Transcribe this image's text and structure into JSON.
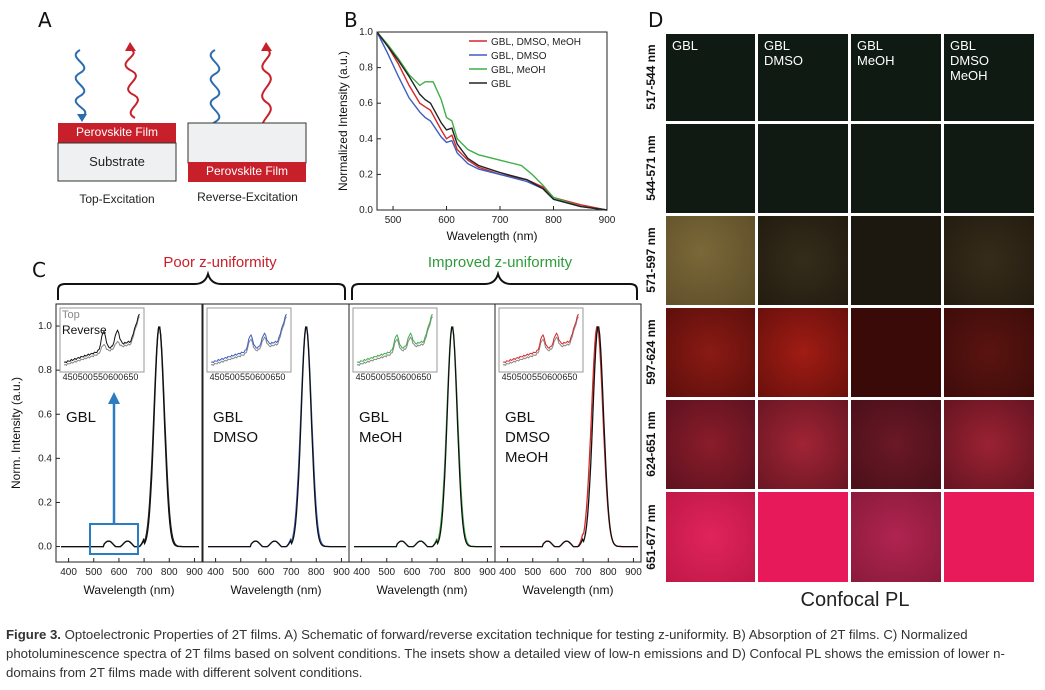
{
  "panels": {
    "a_letter": "A",
    "b_letter": "B",
    "c_letter": "C",
    "d_letter": "D"
  },
  "panel_a": {
    "film": "Perovskite Film",
    "substrate": "Substrate",
    "top_label": "Top-Excitation",
    "reverse_label": "Reverse-Excitation",
    "colors": {
      "film": "#c8202a",
      "wave_in": "#2b6cb0",
      "wave_out": "#c8202a"
    }
  },
  "panel_c_headers": {
    "poor": "Poor z-uniformity",
    "improved": "Improved z-uniformity",
    "poor_color": "#c8202a",
    "improved_color": "#2e9b3b"
  },
  "panel_c_subplots": [
    {
      "label_lines": [
        "GBL"
      ],
      "inset_legend": [
        "Top",
        "Reverse"
      ]
    },
    {
      "label_lines": [
        "GBL",
        "DMSO"
      ]
    },
    {
      "label_lines": [
        "GBL",
        "MeOH"
      ]
    },
    {
      "label_lines": [
        "GBL",
        "DMSO",
        "MeOH"
      ]
    }
  ],
  "panel_c_axes": {
    "ylabel": "Norm. Intensity (a.u.)",
    "xlabel": "Wavelength (nm)",
    "inset_xlabel": "Wavelength (nm)"
  },
  "panel_d": {
    "col_labels": [
      "GBL",
      "GBL\nDMSO",
      "GBL\nMeOH",
      "GBL\nDMSO\nMeOH"
    ],
    "row_labels": [
      "517-544 nm",
      "544-571 nm",
      "571-597 nm",
      "597-624 nm",
      "624-651 nm",
      "651-677 nm"
    ],
    "row_colors": [
      [
        "#0f1a12",
        "#0f1a12",
        "#0f1a12",
        "#0f1a12"
      ],
      [
        "#101a12",
        "#101a12",
        "#101a12",
        "#101a12"
      ],
      [
        "#6b5a30",
        "#2a2416",
        "#1e1a12",
        "#2b2416"
      ],
      [
        "#7a1410",
        "#8a1710",
        "#3a0a08",
        "#4d0e0c"
      ],
      [
        "#7a1824",
        "#8a2030",
        "#5a1420",
        "#8a1d2c"
      ],
      [
        "#d81d55",
        "#e8195a",
        "#a81e48",
        "#e81a5a"
      ]
    ],
    "footer": "Confocal PL"
  },
  "caption": {
    "fig": "Figure 3.",
    "text": "Optoelectronic Properties of 2T films. A) Schematic of forward/reverse excitation technique for testing z-uniformity. B) Absorption of 2T films. C) Normalized photoluminescence spectra of 2T films based on solvent conditions. The insets show a detailed view of low-n emissions and D) Confocal PL shows the emission of lower n-domains from 2T films made with different solvent conditions."
  },
  "chart_data": [
    {
      "type": "line",
      "panel": "B",
      "xlabel": "Wavelength (nm)",
      "ylabel": "Normalized Intensity (a.u.)",
      "xlim": [
        470,
        900
      ],
      "ylim": [
        0,
        1.0
      ],
      "xticks": [
        500,
        600,
        700,
        800,
        900
      ],
      "yticks": [
        0.0,
        0.2,
        0.4,
        0.6,
        0.8,
        1.0
      ],
      "legend_position": "top-right",
      "series": [
        {
          "name": "GBL, DMSO, MeOH",
          "color": "#d62728",
          "points": [
            [
              470,
              1.0
            ],
            [
              490,
              0.92
            ],
            [
              510,
              0.82
            ],
            [
              530,
              0.7
            ],
            [
              550,
              0.6
            ],
            [
              560,
              0.58
            ],
            [
              570,
              0.56
            ],
            [
              590,
              0.45
            ],
            [
              600,
              0.4
            ],
            [
              610,
              0.42
            ],
            [
              620,
              0.34
            ],
            [
              640,
              0.28
            ],
            [
              660,
              0.24
            ],
            [
              700,
              0.2
            ],
            [
              750,
              0.17
            ],
            [
              780,
              0.13
            ],
            [
              800,
              0.07
            ],
            [
              850,
              0.03
            ],
            [
              900,
              0.0
            ]
          ]
        },
        {
          "name": "GBL, DMSO",
          "color": "#3b5fc0",
          "points": [
            [
              470,
              1.0
            ],
            [
              490,
              0.88
            ],
            [
              510,
              0.75
            ],
            [
              530,
              0.63
            ],
            [
              550,
              0.55
            ],
            [
              560,
              0.52
            ],
            [
              570,
              0.5
            ],
            [
              590,
              0.41
            ],
            [
              600,
              0.38
            ],
            [
              610,
              0.39
            ],
            [
              620,
              0.32
            ],
            [
              640,
              0.26
            ],
            [
              660,
              0.23
            ],
            [
              700,
              0.2
            ],
            [
              750,
              0.16
            ],
            [
              780,
              0.12
            ],
            [
              800,
              0.06
            ],
            [
              850,
              0.02
            ],
            [
              900,
              0.0
            ]
          ]
        },
        {
          "name": "GBL, MeOH",
          "color": "#3fae49",
          "points": [
            [
              470,
              1.0
            ],
            [
              490,
              0.93
            ],
            [
              510,
              0.85
            ],
            [
              530,
              0.76
            ],
            [
              550,
              0.7
            ],
            [
              560,
              0.72
            ],
            [
              575,
              0.72
            ],
            [
              590,
              0.62
            ],
            [
              600,
              0.52
            ],
            [
              610,
              0.5
            ],
            [
              620,
              0.4
            ],
            [
              640,
              0.34
            ],
            [
              660,
              0.31
            ],
            [
              700,
              0.28
            ],
            [
              740,
              0.25
            ],
            [
              760,
              0.2
            ],
            [
              780,
              0.14
            ],
            [
              800,
              0.07
            ],
            [
              850,
              0.02
            ],
            [
              900,
              0.0
            ]
          ]
        },
        {
          "name": "GBL",
          "color": "#222222",
          "points": [
            [
              470,
              1.0
            ],
            [
              490,
              0.92
            ],
            [
              510,
              0.84
            ],
            [
              530,
              0.75
            ],
            [
              550,
              0.65
            ],
            [
              560,
              0.62
            ],
            [
              570,
              0.6
            ],
            [
              590,
              0.49
            ],
            [
              600,
              0.45
            ],
            [
              610,
              0.46
            ],
            [
              620,
              0.37
            ],
            [
              640,
              0.29
            ],
            [
              660,
              0.25
            ],
            [
              700,
              0.21
            ],
            [
              750,
              0.17
            ],
            [
              780,
              0.12
            ],
            [
              800,
              0.06
            ],
            [
              850,
              0.02
            ],
            [
              900,
              0.0
            ]
          ]
        }
      ]
    },
    {
      "type": "line",
      "panel": "C",
      "xlabel": "Wavelength (nm)",
      "ylabel": "Norm. Intensity (a.u.)",
      "xlim": [
        350,
        930
      ],
      "ylim": [
        -0.07,
        1.1
      ],
      "xticks": [
        400,
        500,
        600,
        700,
        800,
        900
      ],
      "yticks": [
        0.0,
        0.2,
        0.4,
        0.6,
        0.8,
        1.0
      ],
      "peak_nm": 760,
      "subplots": [
        "GBL",
        "GBL DMSO",
        "GBL MeOH",
        "GBL DMSO MeOH"
      ],
      "inset_xticks": [
        450,
        500,
        550,
        600,
        650
      ],
      "inset_xlim": [
        430,
        680
      ]
    }
  ]
}
